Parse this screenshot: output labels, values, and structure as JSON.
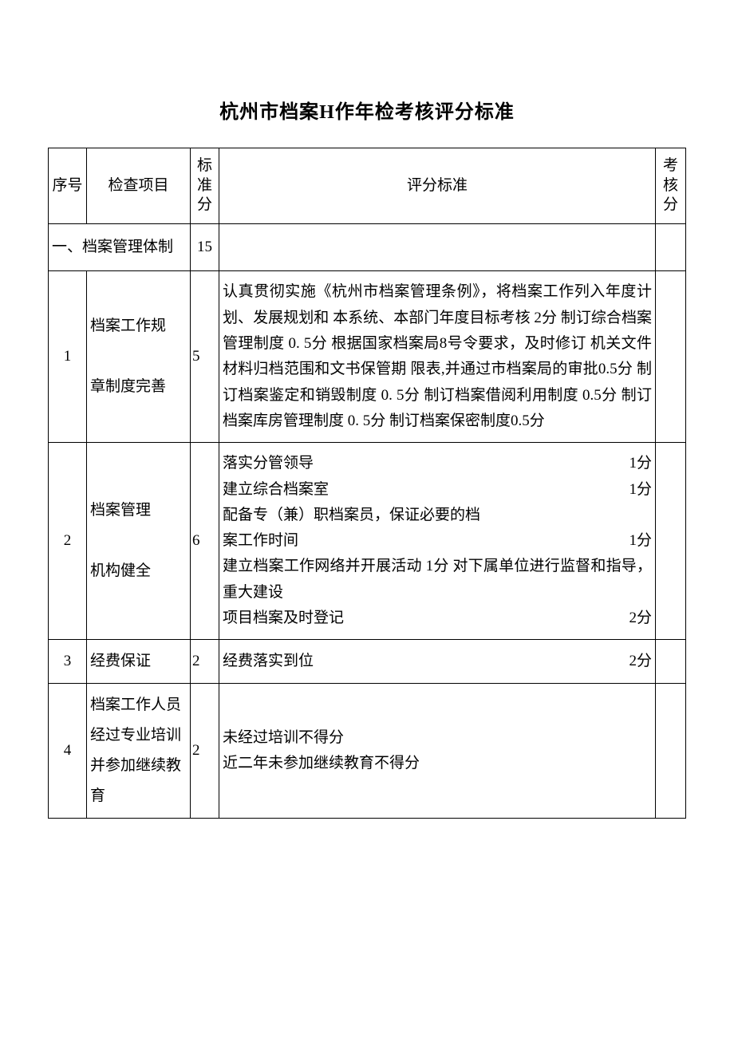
{
  "title": "杭州市档案H作年检考核评分标准",
  "table": {
    "headers": {
      "seq": "序号",
      "item": "检查项目",
      "std_score": "标准分",
      "criteria": "评分标准",
      "eval_score": "考核分"
    },
    "section1": {
      "label": "一、档案管理体制",
      "score": "15"
    },
    "rows": [
      {
        "seq": "1",
        "item_line1": "档案工作规",
        "item_line2": "章制度完善",
        "std": "5",
        "criteria": "认真贯彻实施《杭州市档案管理条例》，将档案工作列入年度计划、发展规划和 本系统、本部门年度目标考核 2分 制订综合档案管理制度 0. 5分 根据国家档案局8号令要求，及时修订 机关文件材料归档范围和文书保管期 限表,并通过市档案局的审批0.5分 制订档案鉴定和销毁制度 0. 5分 制订档案借阅利用制度 0.5分 制订档案库房管理制度  0.  5分  制订档案保密制度0.5分"
      },
      {
        "seq": "2",
        "item_line1": "档案管理",
        "item_line2": "机构健全",
        "std": "6",
        "lines": [
          {
            "text": "落实分管领导",
            "pts": "1分"
          },
          {
            "text": "建立综合档案室",
            "pts": "1分"
          },
          {
            "text": "配备专（兼）职档案员，保证必要的档",
            "pts": ""
          },
          {
            "text": "案工作时间",
            "pts": "1分"
          },
          {
            "text": "建立档案工作网络并开展活动 1分 对下属单位进行监督和指导，重大建设",
            "pts": ""
          },
          {
            "text": "项目档案及时登记",
            "pts": "2分"
          }
        ]
      },
      {
        "seq": "3",
        "item": "经费保证",
        "std": "2",
        "lines": [
          {
            "text": "经费落实到位",
            "pts": "2分"
          }
        ]
      },
      {
        "seq": "4",
        "item": "档案工作人员经过专业培训并参加继续教育",
        "std": "2",
        "criteria_line1": "未经过培训不得分",
        "criteria_line2": "近二年未参加继续教育不得分"
      }
    ]
  },
  "colors": {
    "border": "#000000",
    "background": "#ffffff",
    "text": "#000000"
  },
  "typography": {
    "title_fontsize": 24,
    "body_fontsize": 19,
    "font_family": "SimSun"
  }
}
